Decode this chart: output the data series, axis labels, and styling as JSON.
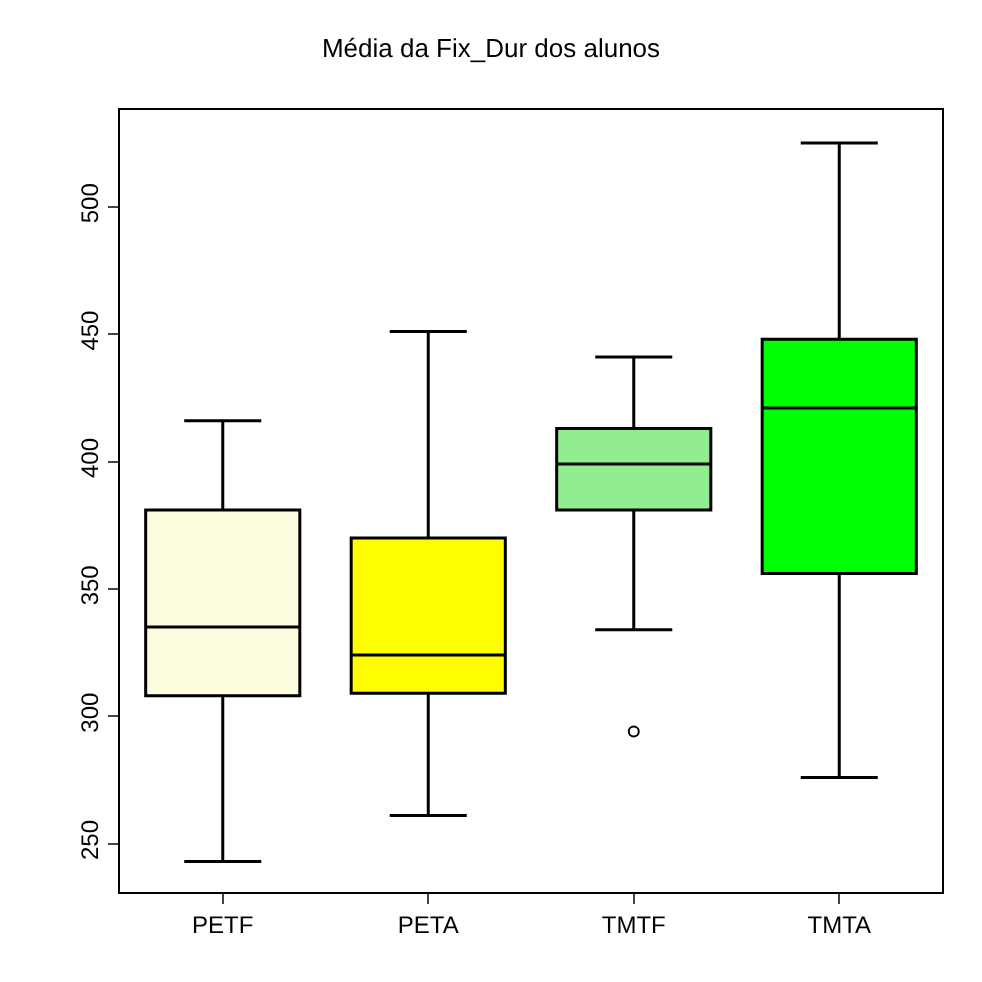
{
  "chart_data": {
    "type": "box",
    "title": "Média da Fix_Dur dos alunos",
    "categories": [
      "PETF",
      "PETA",
      "TMTF",
      "TMTA"
    ],
    "colors": [
      "#fffde0",
      "#ffff00",
      "#90ee90",
      "#00ff00"
    ],
    "boxes": [
      {
        "low": 243,
        "q1": 308,
        "median": 335,
        "q3": 381,
        "high": 416
      },
      {
        "low": 261,
        "q1": 309,
        "median": 324,
        "q3": 370,
        "high": 451
      },
      {
        "low": 334,
        "q1": 381,
        "median": 399,
        "q3": 413,
        "high": 441,
        "outliers": [
          294
        ]
      },
      {
        "low": 276,
        "q1": 356,
        "median": 421,
        "q3": 448,
        "high": 525
      }
    ],
    "ylim": [
      231,
      538
    ],
    "yticks": [
      250,
      300,
      350,
      400,
      450,
      500
    ]
  }
}
